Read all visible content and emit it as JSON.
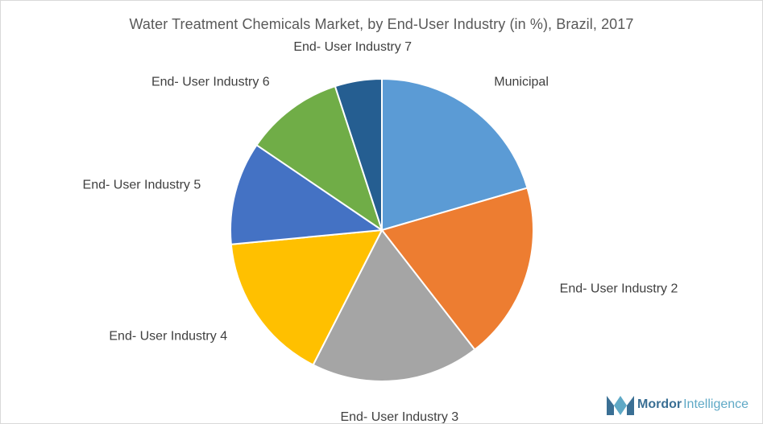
{
  "chart_data": {
    "type": "pie",
    "title": "Water Treatment Chemicals Market, by End-User Industry (in %), Brazil, 2017",
    "categories": [
      "Municipal",
      "End- User Industry 2",
      "End- User Industry 3",
      "End- User Industry 4",
      "End- User Industry 5",
      "End- User Industry 6",
      "End- User Industry 7"
    ],
    "values": [
      20.5,
      19.0,
      18.0,
      16.0,
      11.0,
      10.5,
      5.0
    ],
    "colors": [
      "#5b9bd5",
      "#ed7d31",
      "#a5a5a5",
      "#ffc000",
      "#4472c4",
      "#70ad47",
      "#255e91"
    ],
    "legend": "none"
  },
  "branding": {
    "logo_word_1": "Mordor",
    "logo_word_2": "Intelligence",
    "logo_colors": [
      "#3a6f94",
      "#5fa9c6"
    ]
  }
}
